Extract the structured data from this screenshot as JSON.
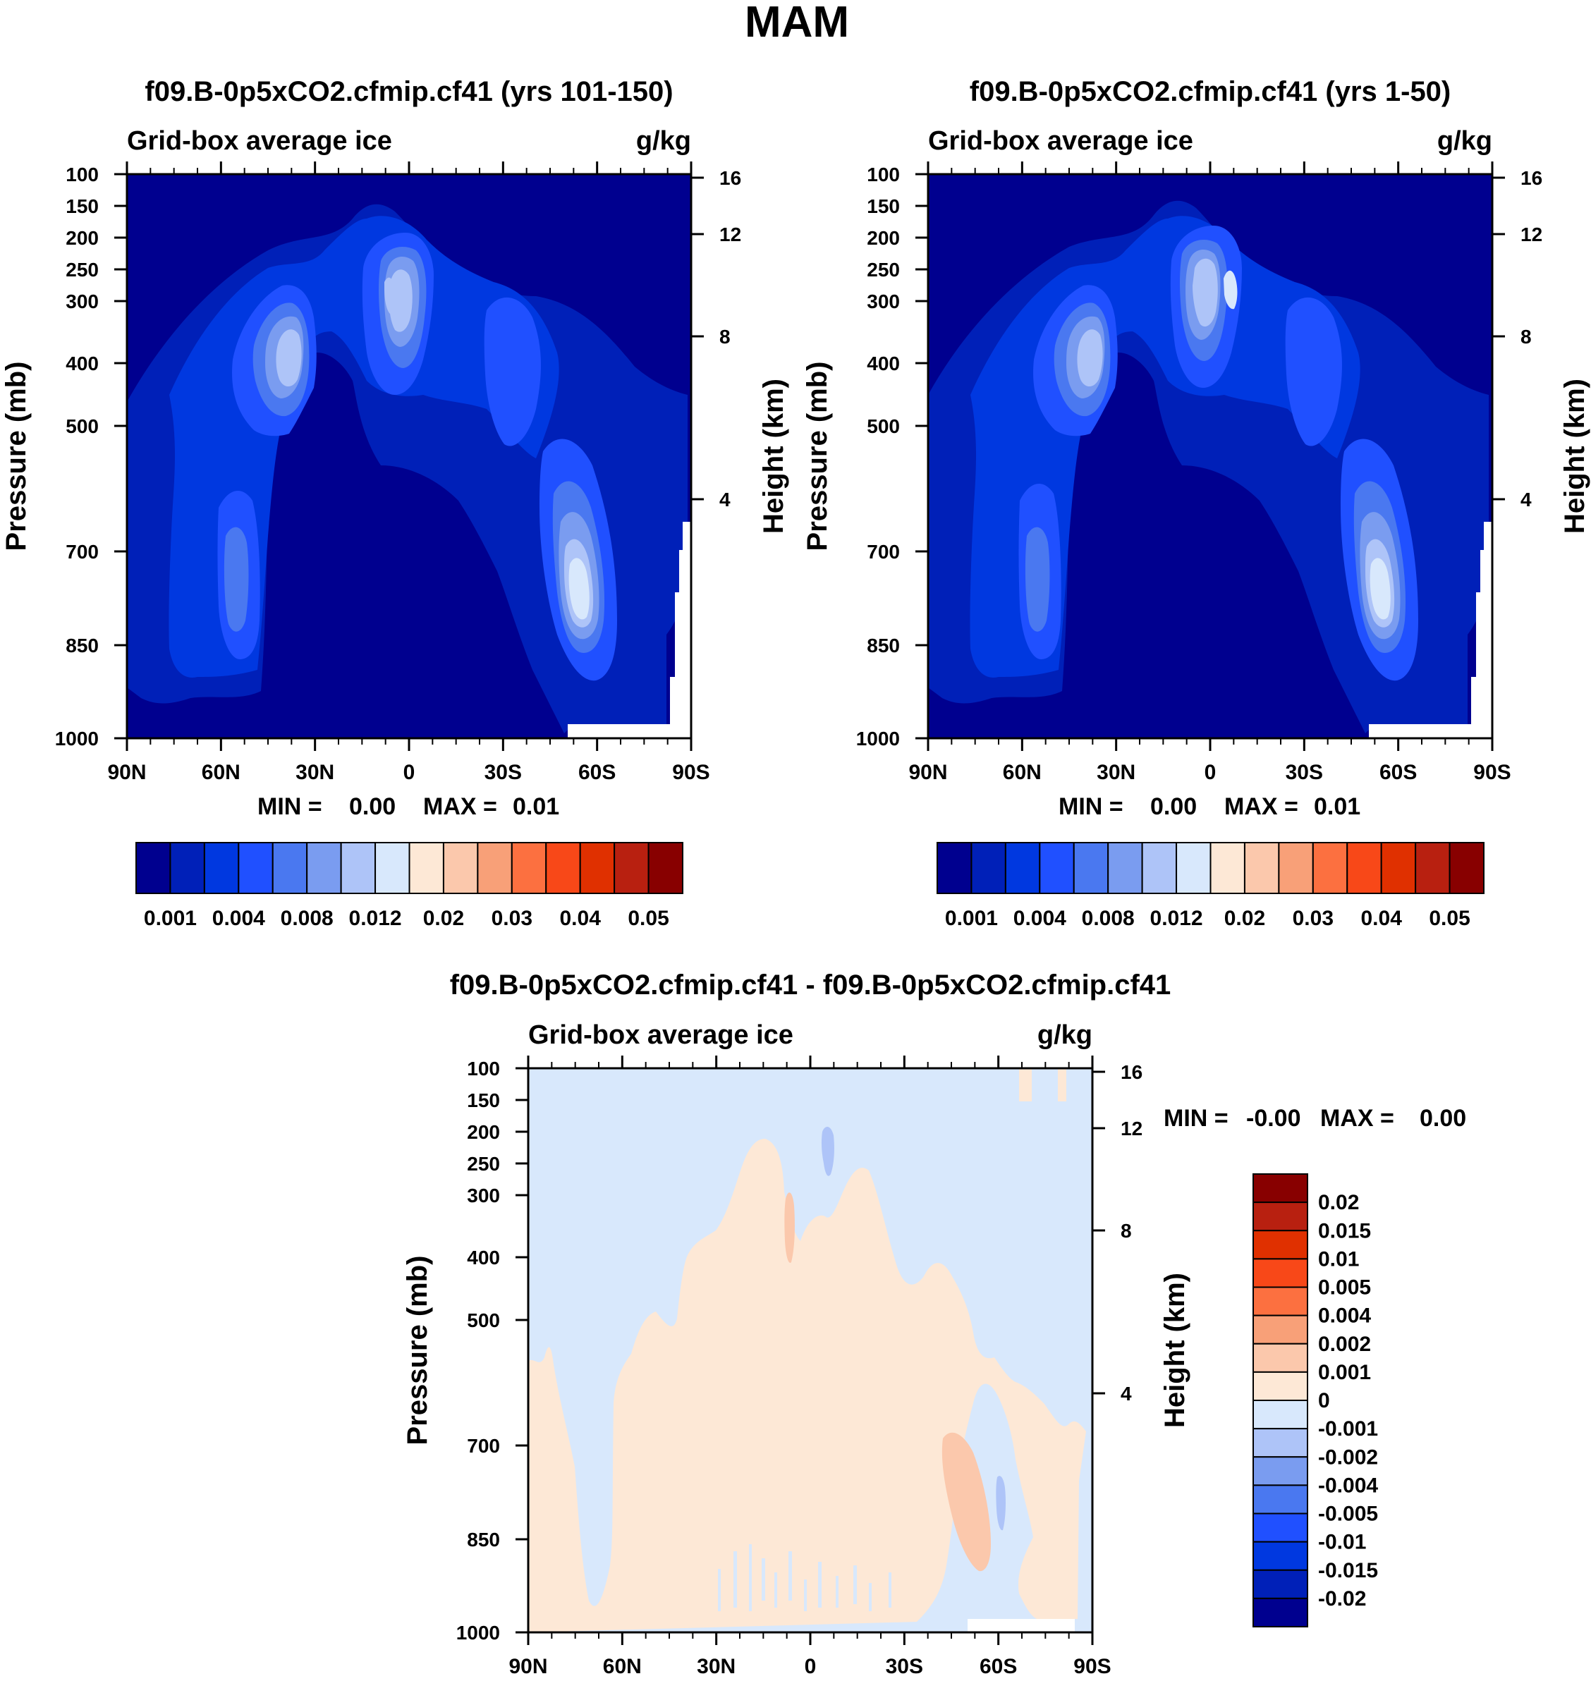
{
  "page_title": "MAM",
  "palettes": {
    "abs": [
      "#00008f",
      "#0020b8",
      "#0038e0",
      "#2050ff",
      "#4a78f0",
      "#7a9cf0",
      "#aec4f8",
      "#d8e8fc",
      "#fde8d6",
      "#fbc8ac",
      "#f8a078",
      "#fc7040",
      "#f84818",
      "#e03000",
      "#b82010",
      "#880000"
    ],
    "diff": [
      "#880000",
      "#b82010",
      "#e03000",
      "#f84818",
      "#fc7040",
      "#f8a078",
      "#fbc8ac",
      "#fde8d6",
      "#d8e8fc",
      "#aec4f8",
      "#7a9cf0",
      "#4a78f0",
      "#2050ff",
      "#0038e0",
      "#0020b8",
      "#00008f"
    ]
  },
  "chart_data": [
    {
      "type": "contour",
      "title": "f09.B-0p5xCO2.cfmip.cf41 (yrs 101-150)",
      "left_label": "Grid-box average ice",
      "right_label": "g/kg",
      "ylabel": "Pressure (mb)",
      "ylabel_right": "Height (km)",
      "x_ticks": [
        "90N",
        "60N",
        "30N",
        "0",
        "30S",
        "60S",
        "90S"
      ],
      "y_ticks": [
        "100",
        "150",
        "200",
        "250",
        "300",
        "400",
        "500",
        "700",
        "850",
        "1000"
      ],
      "y_ticks_right": [
        "16",
        "12",
        "8",
        "4"
      ],
      "minmax": {
        "min_label": "MIN =",
        "min": "0.00",
        "max_label": "MAX =",
        "max": "0.01"
      },
      "colorbar_labels": [
        "0.001",
        "0.004",
        "0.008",
        "0.012",
        "0.02",
        "0.03",
        "0.04",
        "0.05"
      ],
      "colorbar_levels": [
        "0.001",
        "0.002",
        "0.004",
        "0.006",
        "0.008",
        "0.01",
        "0.012",
        "0.015",
        "0.02",
        "0.025",
        "0.03",
        "0.035",
        "0.04",
        "0.045",
        "0.05"
      ],
      "features": [
        {
          "name": "nh-midlat-upper-max",
          "lat": -37,
          "p": 370,
          "peak_level": 6
        },
        {
          "name": "tropical-upper-max",
          "lat": -5,
          "p": 300,
          "peak_level": 6
        },
        {
          "name": "sh-midlat-upper",
          "lat": 33,
          "p": 320,
          "peak_level": 3
        },
        {
          "name": "sh-low-max",
          "lat": 55,
          "p": 780,
          "peak_level": 7
        },
        {
          "name": "nh-low",
          "lat": -55,
          "p": 680,
          "peak_level": 3
        }
      ]
    },
    {
      "type": "contour",
      "title": "f09.B-0p5xCO2.cfmip.cf41 (yrs 1-50)",
      "left_label": "Grid-box average ice",
      "right_label": "g/kg",
      "ylabel": "Pressure (mb)",
      "ylabel_right": "Height (km)",
      "x_ticks": [
        "90N",
        "60N",
        "30N",
        "0",
        "30S",
        "60S",
        "90S"
      ],
      "y_ticks": [
        "100",
        "150",
        "200",
        "250",
        "300",
        "400",
        "500",
        "700",
        "850",
        "1000"
      ],
      "y_ticks_right": [
        "16",
        "12",
        "8",
        "4"
      ],
      "minmax": {
        "min_label": "MIN =",
        "min": "0.00",
        "max_label": "MAX =",
        "max": "0.01"
      },
      "colorbar_labels": [
        "0.001",
        "0.004",
        "0.008",
        "0.012",
        "0.02",
        "0.03",
        "0.04",
        "0.05"
      ],
      "colorbar_levels": [
        "0.001",
        "0.002",
        "0.004",
        "0.006",
        "0.008",
        "0.01",
        "0.012",
        "0.015",
        "0.02",
        "0.025",
        "0.03",
        "0.035",
        "0.04",
        "0.045",
        "0.05"
      ],
      "features": [
        {
          "name": "nh-midlat-upper-max",
          "lat": -37,
          "p": 370,
          "peak_level": 6
        },
        {
          "name": "tropical-upper-max",
          "lat": 5,
          "p": 290,
          "peak_level": 7
        },
        {
          "name": "sh-midlat-upper",
          "lat": 33,
          "p": 320,
          "peak_level": 3
        },
        {
          "name": "sh-low-max",
          "lat": 55,
          "p": 760,
          "peak_level": 7
        },
        {
          "name": "nh-low",
          "lat": -55,
          "p": 680,
          "peak_level": 3
        }
      ]
    },
    {
      "type": "contour",
      "title": "f09.B-0p5xCO2.cfmip.cf41 - f09.B-0p5xCO2.cfmip.cf41",
      "left_label": "Grid-box average ice",
      "right_label": "g/kg",
      "ylabel": "Pressure (mb)",
      "ylabel_right": "Height (km)",
      "x_ticks": [
        "90N",
        "60N",
        "30N",
        "0",
        "30S",
        "60S",
        "90S"
      ],
      "y_ticks": [
        "100",
        "150",
        "200",
        "250",
        "300",
        "400",
        "500",
        "700",
        "850",
        "1000"
      ],
      "y_ticks_right": [
        "16",
        "12",
        "8",
        "4"
      ],
      "minmax": {
        "min_label": "MIN =",
        "min": "-0.00",
        "max_label": "MAX =",
        "max": "0.00"
      },
      "colorbar_labels": [
        "0.02",
        "0.015",
        "0.01",
        "0.005",
        "0.004",
        "0.002",
        "0.001",
        "0",
        "-0.001",
        "-0.002",
        "-0.004",
        "-0.005",
        "-0.01",
        "-0.015",
        "-0.02"
      ],
      "features": [
        {
          "name": "positive-region",
          "lat": 5,
          "p": 500,
          "sign": "positive"
        },
        {
          "name": "positive-max",
          "lat": 48,
          "p": 760,
          "sign": "positive"
        },
        {
          "name": "negative-small",
          "lat": 5,
          "p": 230,
          "sign": "negative"
        }
      ]
    }
  ]
}
